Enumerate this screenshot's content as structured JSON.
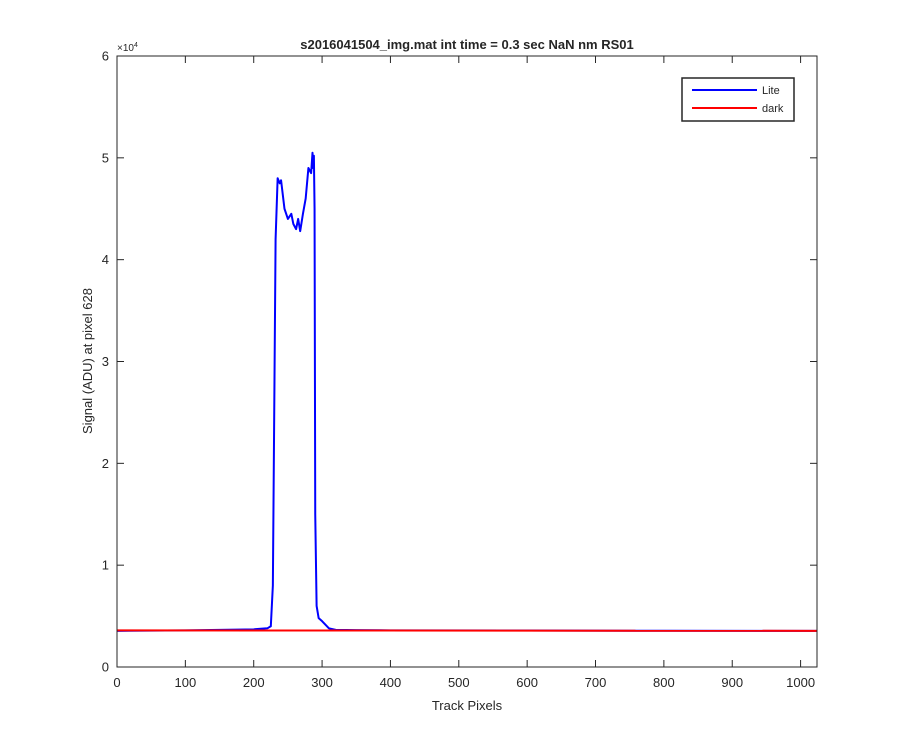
{
  "chart_data": {
    "type": "line",
    "title": "s2016041504_img.mat int time = 0.3 sec  NaN nm RS01",
    "xlabel": "Track Pixels",
    "ylabel": "Signal (ADU) at pixel 628",
    "exponent_label": "×10",
    "exponent_power": "4",
    "xlim": [
      0,
      1024
    ],
    "ylim": [
      0,
      60000
    ],
    "xticks": [
      0,
      100,
      200,
      300,
      400,
      500,
      600,
      700,
      800,
      900,
      1000
    ],
    "yticks": [
      0,
      10000,
      20000,
      30000,
      40000,
      50000,
      60000
    ],
    "xtick_labels": [
      "0",
      "100",
      "200",
      "300",
      "400",
      "500",
      "600",
      "700",
      "800",
      "900",
      "1000"
    ],
    "ytick_labels": [
      "0",
      "1",
      "2",
      "3",
      "4",
      "5",
      "6"
    ],
    "legend_position": "top-right",
    "grid": false,
    "series": [
      {
        "name": "Lite",
        "color": "#0000ff",
        "x": [
          0,
          100,
          200,
          220,
          225,
          228,
          230,
          232,
          235,
          238,
          240,
          245,
          250,
          255,
          258,
          262,
          265,
          268,
          272,
          276,
          280,
          284,
          286,
          287,
          288,
          289,
          290,
          292,
          295,
          300,
          310,
          320,
          350,
          400,
          600,
          800,
          1000,
          1024
        ],
        "y": [
          3550,
          3600,
          3700,
          3800,
          4000,
          8000,
          25000,
          42000,
          48000,
          47500,
          47800,
          45000,
          44000,
          44500,
          43500,
          43000,
          44000,
          42800,
          44500,
          46000,
          49000,
          48500,
          50500,
          49000,
          50200,
          45000,
          15000,
          6000,
          4800,
          4500,
          3800,
          3650,
          3620,
          3600,
          3580,
          3560,
          3550,
          3550
        ]
      },
      {
        "name": "dark",
        "color": "#ff0000",
        "x": [
          0,
          1024
        ],
        "y": [
          3600,
          3550
        ]
      }
    ]
  }
}
